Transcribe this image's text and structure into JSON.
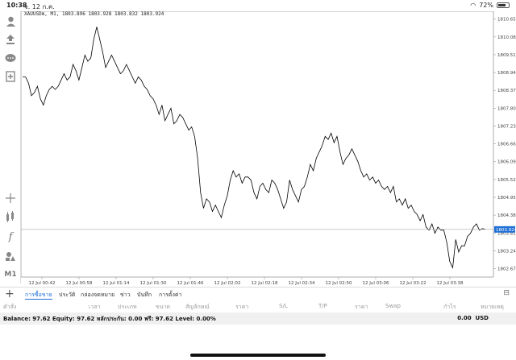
{
  "status_bar": {
    "time": "10:38",
    "date": "จ. 12 ก.ค.",
    "battery": "72%",
    "wifi_icon": "wifi-icon"
  },
  "toolbar": {
    "icons": [
      "account-icon",
      "trade-icon",
      "chat-icon",
      "new-document-icon",
      "crosshair-icon",
      "indicators-icon",
      "function-icon",
      "objects-icon"
    ],
    "timeframe": "M1"
  },
  "chart": {
    "symbol_info": "XAUUSDm, M1, 1803.896 1803.928 1803.832 1803.924",
    "current_price": "1803.924",
    "line_color": "#000000",
    "current_price_color": "#1f6fd6",
    "price_labels": [
      "1810.650",
      "1810.080",
      "1809.510",
      "1808.940",
      "1808.370",
      "1807.800",
      "1807.230",
      "1806.660",
      "1806.090",
      "1805.520",
      "1804.950",
      "1804.380",
      "1803.810",
      "1803.240",
      "1802.670"
    ],
    "time_labels": [
      "12 Jul 00:42",
      "12 Jul 00:58",
      "12 Jul 01:14",
      "12 Jul 01:30",
      "12 Jul 01:46",
      "12 Jul 02:02",
      "12 Jul 02:18",
      "12 Jul 02:34",
      "12 Jul 02:50",
      "12 Jul 03:06",
      "12 Jul 03:22",
      "12 Jul 03:38"
    ]
  },
  "chart_data": {
    "type": "line",
    "ylim": [
      1802.4,
      1810.9
    ],
    "values": [
      1808.8,
      1808.8,
      1808.6,
      1808.2,
      1808.3,
      1808.5,
      1808.1,
      1807.9,
      1808.2,
      1808.4,
      1808.5,
      1808.4,
      1808.5,
      1808.7,
      1808.9,
      1808.7,
      1808.8,
      1809.2,
      1809.0,
      1808.7,
      1809.1,
      1809.5,
      1809.3,
      1809.4,
      1810.0,
      1810.4,
      1810.0,
      1809.6,
      1809.1,
      1809.3,
      1809.5,
      1809.3,
      1809.1,
      1808.9,
      1809.0,
      1809.2,
      1809.0,
      1808.8,
      1808.6,
      1808.8,
      1808.7,
      1808.5,
      1808.4,
      1808.2,
      1808.1,
      1807.9,
      1807.6,
      1807.9,
      1807.4,
      1807.6,
      1807.8,
      1807.3,
      1807.4,
      1807.6,
      1807.5,
      1807.3,
      1807.1,
      1807.2,
      1806.9,
      1806.2,
      1805.1,
      1804.6,
      1804.9,
      1804.8,
      1804.5,
      1804.7,
      1804.5,
      1804.3,
      1804.7,
      1805.0,
      1805.5,
      1805.8,
      1805.6,
      1805.7,
      1805.4,
      1805.6,
      1805.6,
      1805.5,
      1805.1,
      1804.9,
      1805.3,
      1805.4,
      1805.2,
      1805.1,
      1805.5,
      1805.4,
      1805.2,
      1804.9,
      1804.6,
      1804.8,
      1805.5,
      1805.2,
      1805.0,
      1804.8,
      1805.2,
      1805.3,
      1805.6,
      1806.0,
      1805.8,
      1806.2,
      1806.4,
      1806.6,
      1806.9,
      1806.8,
      1807.0,
      1806.7,
      1806.9,
      1806.4,
      1806.0,
      1806.2,
      1806.3,
      1806.5,
      1806.3,
      1806.1,
      1805.8,
      1805.6,
      1805.7,
      1805.5,
      1805.6,
      1805.4,
      1805.5,
      1805.3,
      1805.2,
      1805.3,
      1805.1,
      1805.3,
      1804.8,
      1804.9,
      1804.7,
      1804.9,
      1804.6,
      1804.7,
      1804.5,
      1804.4,
      1804.2,
      1804.4,
      1804.0,
      1803.9,
      1804.1,
      1803.8,
      1804.0,
      1803.9,
      1803.9,
      1803.5,
      1802.9,
      1802.7,
      1803.6,
      1803.2,
      1803.4,
      1803.4,
      1803.7,
      1803.8,
      1804.0,
      1804.1,
      1803.9,
      1803.95,
      1803.924
    ]
  },
  "tabs": {
    "items": [
      "การซื้อขาย",
      "ประวัติ",
      "กล่องจดหมาย",
      "ข่าว",
      "บันทึก",
      "การตั้งค่า"
    ],
    "active_index": 0
  },
  "table": {
    "columns": [
      "คำสั่ง",
      "เวลา",
      "ประเภท",
      "ขนาด",
      "สัญลักษณ์",
      "ราคา",
      "S/L",
      "T/P",
      "ราคา",
      "Swap",
      "กำไร",
      "หมายเหตุ"
    ]
  },
  "balance": {
    "text": "Balance: 97.62 Equity: 97.62 หลักประกัน: 0.00 ฟรี: 97.62 Level: 0.00%",
    "total": "0.00",
    "currency": "USD"
  }
}
